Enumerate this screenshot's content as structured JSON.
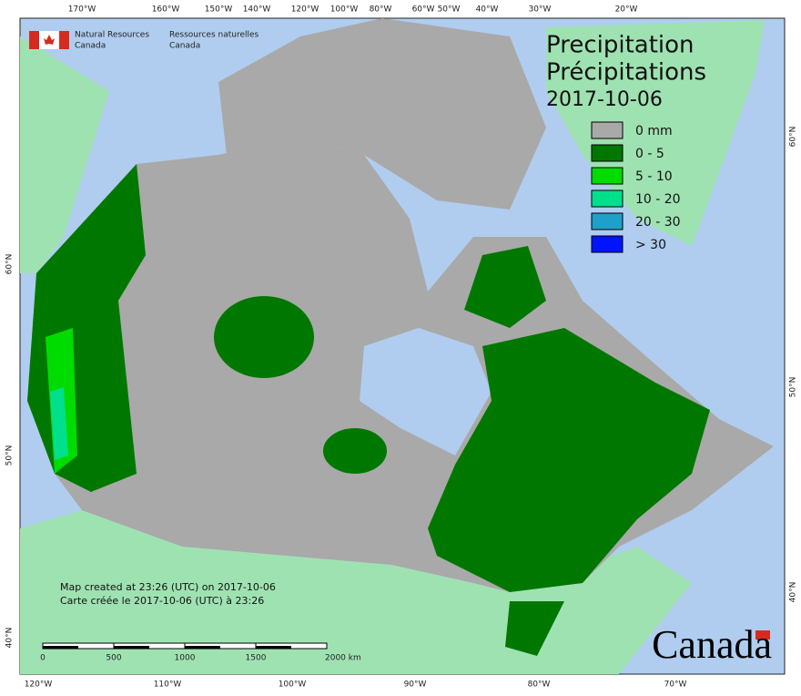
{
  "header": {
    "org_en": [
      "Natural Resources",
      "Canada"
    ],
    "org_fr": [
      "Ressources naturelles",
      "Canada"
    ]
  },
  "title": {
    "en": "Precipitation",
    "fr": "Précipitations",
    "date": "2017-10-06"
  },
  "legend": [
    {
      "label": "0 mm",
      "color": "#a9a9a9"
    },
    {
      "label": "0 - 5",
      "color": "#007800"
    },
    {
      "label": "5 - 10",
      "color": "#00dc00"
    },
    {
      "label": "10 - 20",
      "color": "#00e08c"
    },
    {
      "label": "20 - 30",
      "color": "#1fa0c8"
    },
    {
      "label": "> 30",
      "color": "#0014ff"
    }
  ],
  "graticule": {
    "top": [
      "170°W",
      "160°W",
      "150°W",
      "140°W",
      "120°W",
      "100°W",
      "80°W",
      "60°W",
      "50°W",
      "40°W",
      "30°W",
      "20°W"
    ],
    "bottom": [
      "120°W",
      "110°W",
      "100°W",
      "90°W",
      "80°W",
      "70°W"
    ],
    "left": [
      "60°N",
      "50°N",
      "40°N"
    ],
    "right": [
      "60°N",
      "50°N",
      "40°N"
    ]
  },
  "notes": [
    "Map created at 23:26 (UTC) on 2017-10-06",
    "Carte créée le 2017-10-06 (UTC) à 23:26"
  ],
  "scale_bar": [
    "0",
    "500",
    "1000",
    "1500",
    "2000 km"
  ],
  "wordmark": "Canada"
}
